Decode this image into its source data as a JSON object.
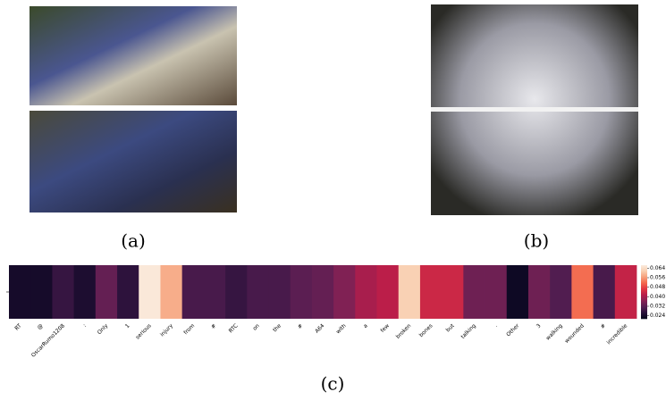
{
  "panels": {
    "a": "(a)",
    "b": "(b)",
    "c": "(c)"
  },
  "chart_data": {
    "type": "heatmap",
    "colormap": "rocket",
    "categories": [
      "RT",
      "@",
      "OscarRumo1208",
      ":",
      "Only",
      "1",
      "serious",
      "injury",
      "from",
      "#",
      "RTC",
      "on",
      "the",
      "#",
      "A64",
      "with",
      "a",
      "few",
      "broken",
      "bones",
      "but",
      "talking",
      ".",
      "Other",
      "3",
      "walking",
      "wounded",
      "#",
      "incredible"
    ],
    "values": [
      0.024,
      0.024,
      0.028,
      0.025,
      0.033,
      0.027,
      0.066,
      0.058,
      0.03,
      0.03,
      0.028,
      0.03,
      0.03,
      0.032,
      0.033,
      0.036,
      0.04,
      0.042,
      0.062,
      0.044,
      0.044,
      0.034,
      0.034,
      0.023,
      0.034,
      0.031,
      0.052,
      0.03,
      0.043
    ],
    "clim": [
      0.0215,
      0.0665
    ],
    "cticks": [
      {
        "value": 0.024,
        "label": "0.024"
      },
      {
        "value": 0.032,
        "label": "0.032"
      },
      {
        "value": 0.04,
        "label": "0.040"
      },
      {
        "value": 0.048,
        "label": "0.048"
      },
      {
        "value": 0.056,
        "label": "0.056"
      },
      {
        "value": 0.064,
        "label": "0.064"
      }
    ]
  }
}
